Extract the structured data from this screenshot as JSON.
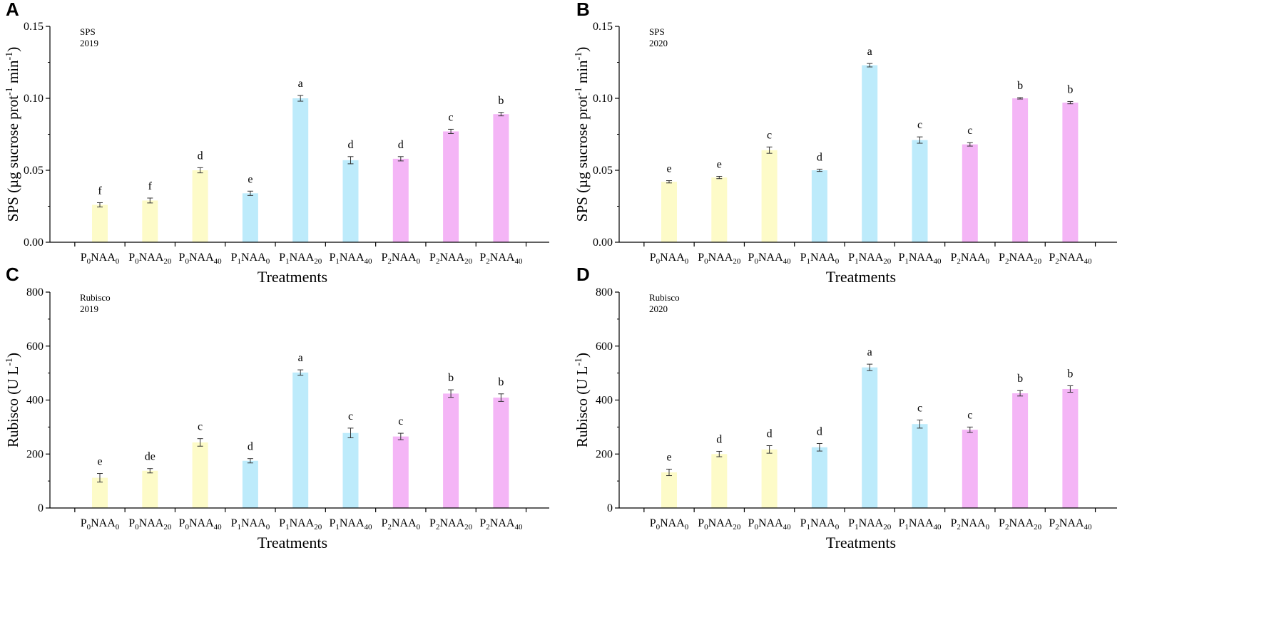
{
  "colors": {
    "P0": "#fdfbc8",
    "P1": "#bdebfb",
    "P2": "#f4b5f6",
    "axis": "#000000"
  },
  "x_label": "Treatments",
  "chart_data": [
    {
      "panel": "A",
      "type": "bar",
      "annotation": [
        "SPS",
        "2019"
      ],
      "ylabel_parts": [
        "SPS (µg sucrose prot",
        "-1",
        " min",
        "-1",
        ")"
      ],
      "ylim": [
        0,
        0.15
      ],
      "yticks": [
        "0.00",
        "0.05",
        "0.10",
        "0.15"
      ],
      "categories": [
        {
          "prefix": "P",
          "p": "0",
          "mid": "NAA",
          "n": "0",
          "group": "P0"
        },
        {
          "prefix": "P",
          "p": "0",
          "mid": "NAA",
          "n": "20",
          "group": "P0"
        },
        {
          "prefix": "P",
          "p": "0",
          "mid": "NAA",
          "n": "40",
          "group": "P0"
        },
        {
          "prefix": "P",
          "p": "1",
          "mid": "NAA",
          "n": "0",
          "group": "P1"
        },
        {
          "prefix": "P",
          "p": "1",
          "mid": "NAA",
          "n": "20",
          "group": "P1"
        },
        {
          "prefix": "P",
          "p": "1",
          "mid": "NAA",
          "n": "40",
          "group": "P1"
        },
        {
          "prefix": "P",
          "p": "2",
          "mid": "NAA",
          "n": "0",
          "group": "P2"
        },
        {
          "prefix": "P",
          "p": "2",
          "mid": "NAA",
          "n": "20",
          "group": "P2"
        },
        {
          "prefix": "P",
          "p": "2",
          "mid": "NAA",
          "n": "40",
          "group": "P2"
        }
      ],
      "values": [
        0.026,
        0.029,
        0.05,
        0.034,
        0.1,
        0.057,
        0.058,
        0.077,
        0.089
      ],
      "errors": [
        0.0015,
        0.0017,
        0.0018,
        0.0015,
        0.002,
        0.0025,
        0.0015,
        0.0015,
        0.0012
      ],
      "letters": [
        "f",
        "f",
        "d",
        "e",
        "a",
        "d",
        "d",
        "c",
        "b"
      ]
    },
    {
      "panel": "B",
      "type": "bar",
      "annotation": [
        "SPS",
        "2020"
      ],
      "ylabel_parts": [
        "SPS (µg sucrose prot",
        "-1",
        " min",
        "-1",
        ")"
      ],
      "ylim": [
        0,
        0.15
      ],
      "yticks": [
        "0.00",
        "0.05",
        "0.10",
        "0.15"
      ],
      "categories": [
        {
          "prefix": "P",
          "p": "0",
          "mid": "NAA",
          "n": "0",
          "group": "P0"
        },
        {
          "prefix": "P",
          "p": "0",
          "mid": "NAA",
          "n": "20",
          "group": "P0"
        },
        {
          "prefix": "P",
          "p": "0",
          "mid": "NAA",
          "n": "40",
          "group": "P0"
        },
        {
          "prefix": "P",
          "p": "1",
          "mid": "NAA",
          "n": "0",
          "group": "P1"
        },
        {
          "prefix": "P",
          "p": "1",
          "mid": "NAA",
          "n": "20",
          "group": "P1"
        },
        {
          "prefix": "P",
          "p": "1",
          "mid": "NAA",
          "n": "40",
          "group": "P1"
        },
        {
          "prefix": "P",
          "p": "2",
          "mid": "NAA",
          "n": "0",
          "group": "P2"
        },
        {
          "prefix": "P",
          "p": "2",
          "mid": "NAA",
          "n": "20",
          "group": "P2"
        },
        {
          "prefix": "P",
          "p": "2",
          "mid": "NAA",
          "n": "40",
          "group": "P2"
        }
      ],
      "values": [
        0.042,
        0.045,
        0.064,
        0.05,
        0.123,
        0.071,
        0.068,
        0.1,
        0.097
      ],
      "errors": [
        0.0008,
        0.0008,
        0.0022,
        0.0008,
        0.0012,
        0.0022,
        0.0012,
        0.0005,
        0.0008
      ],
      "letters": [
        "e",
        "e",
        "c",
        "d",
        "a",
        "c",
        "c",
        "b",
        "b"
      ]
    },
    {
      "panel": "C",
      "type": "bar",
      "annotation": [
        "Rubisco",
        "2019"
      ],
      "ylabel_parts": [
        "Rubisco (U L",
        "-1",
        ")"
      ],
      "ylim": [
        0,
        800
      ],
      "yticks": [
        "0",
        "200",
        "400",
        "600",
        "800"
      ],
      "categories": [
        {
          "prefix": "P",
          "p": "0",
          "mid": "NAA",
          "n": "0",
          "group": "P0"
        },
        {
          "prefix": "P",
          "p": "0",
          "mid": "NAA",
          "n": "20",
          "group": "P0"
        },
        {
          "prefix": "P",
          "p": "0",
          "mid": "NAA",
          "n": "40",
          "group": "P0"
        },
        {
          "prefix": "P",
          "p": "1",
          "mid": "NAA",
          "n": "0",
          "group": "P1"
        },
        {
          "prefix": "P",
          "p": "1",
          "mid": "NAA",
          "n": "20",
          "group": "P1"
        },
        {
          "prefix": "P",
          "p": "1",
          "mid": "NAA",
          "n": "40",
          "group": "P1"
        },
        {
          "prefix": "P",
          "p": "2",
          "mid": "NAA",
          "n": "0",
          "group": "P2"
        },
        {
          "prefix": "P",
          "p": "2",
          "mid": "NAA",
          "n": "20",
          "group": "P2"
        },
        {
          "prefix": "P",
          "p": "2",
          "mid": "NAA",
          "n": "40",
          "group": "P2"
        }
      ],
      "values": [
        112,
        138,
        243,
        175,
        502,
        278,
        265,
        424,
        409
      ],
      "errors": [
        16,
        8,
        14,
        8,
        10,
        18,
        12,
        14,
        14
      ],
      "letters": [
        "e",
        "de",
        "c",
        "d",
        "a",
        "c",
        "c",
        "b",
        "b"
      ]
    },
    {
      "panel": "D",
      "type": "bar",
      "annotation": [
        "Rubisco",
        "2020"
      ],
      "ylabel_parts": [
        "Rubisco (U L",
        "-1",
        ")"
      ],
      "ylim": [
        0,
        800
      ],
      "yticks": [
        "0",
        "200",
        "400",
        "600",
        "800"
      ],
      "categories": [
        {
          "prefix": "P",
          "p": "0",
          "mid": "NAA",
          "n": "0",
          "group": "P0"
        },
        {
          "prefix": "P",
          "p": "0",
          "mid": "NAA",
          "n": "20",
          "group": "P0"
        },
        {
          "prefix": "P",
          "p": "0",
          "mid": "NAA",
          "n": "40",
          "group": "P0"
        },
        {
          "prefix": "P",
          "p": "1",
          "mid": "NAA",
          "n": "0",
          "group": "P1"
        },
        {
          "prefix": "P",
          "p": "1",
          "mid": "NAA",
          "n": "20",
          "group": "P1"
        },
        {
          "prefix": "P",
          "p": "1",
          "mid": "NAA",
          "n": "40",
          "group": "P1"
        },
        {
          "prefix": "P",
          "p": "2",
          "mid": "NAA",
          "n": "0",
          "group": "P2"
        },
        {
          "prefix": "P",
          "p": "2",
          "mid": "NAA",
          "n": "20",
          "group": "P2"
        },
        {
          "prefix": "P",
          "p": "2",
          "mid": "NAA",
          "n": "40",
          "group": "P2"
        }
      ],
      "values": [
        132,
        200,
        217,
        225,
        521,
        311,
        290,
        425,
        441
      ],
      "errors": [
        12,
        10,
        14,
        14,
        12,
        15,
        10,
        10,
        12
      ],
      "letters": [
        "e",
        "d",
        "d",
        "d",
        "a",
        "c",
        "c",
        "b",
        "b"
      ]
    }
  ]
}
